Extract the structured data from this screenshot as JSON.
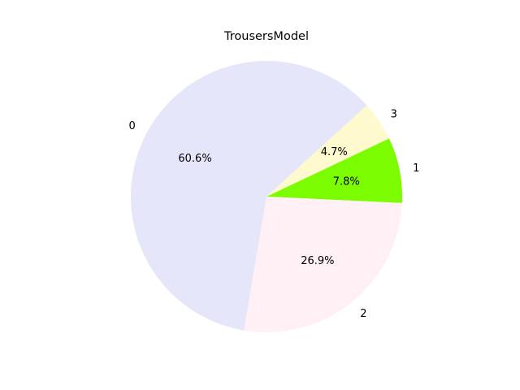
{
  "chart_data": {
    "type": "pie",
    "title": "TrousersModel",
    "categories": [
      "0",
      "1",
      "2",
      "3"
    ],
    "values": [
      60.6,
      7.8,
      26.9,
      4.7
    ],
    "percent_labels": [
      "60.6%",
      "7.8%",
      "26.9%",
      "4.7%"
    ],
    "colors": [
      "#e6e6fa",
      "#7cfc00",
      "#fff0f5",
      "#fffacd"
    ],
    "legend": false
  }
}
